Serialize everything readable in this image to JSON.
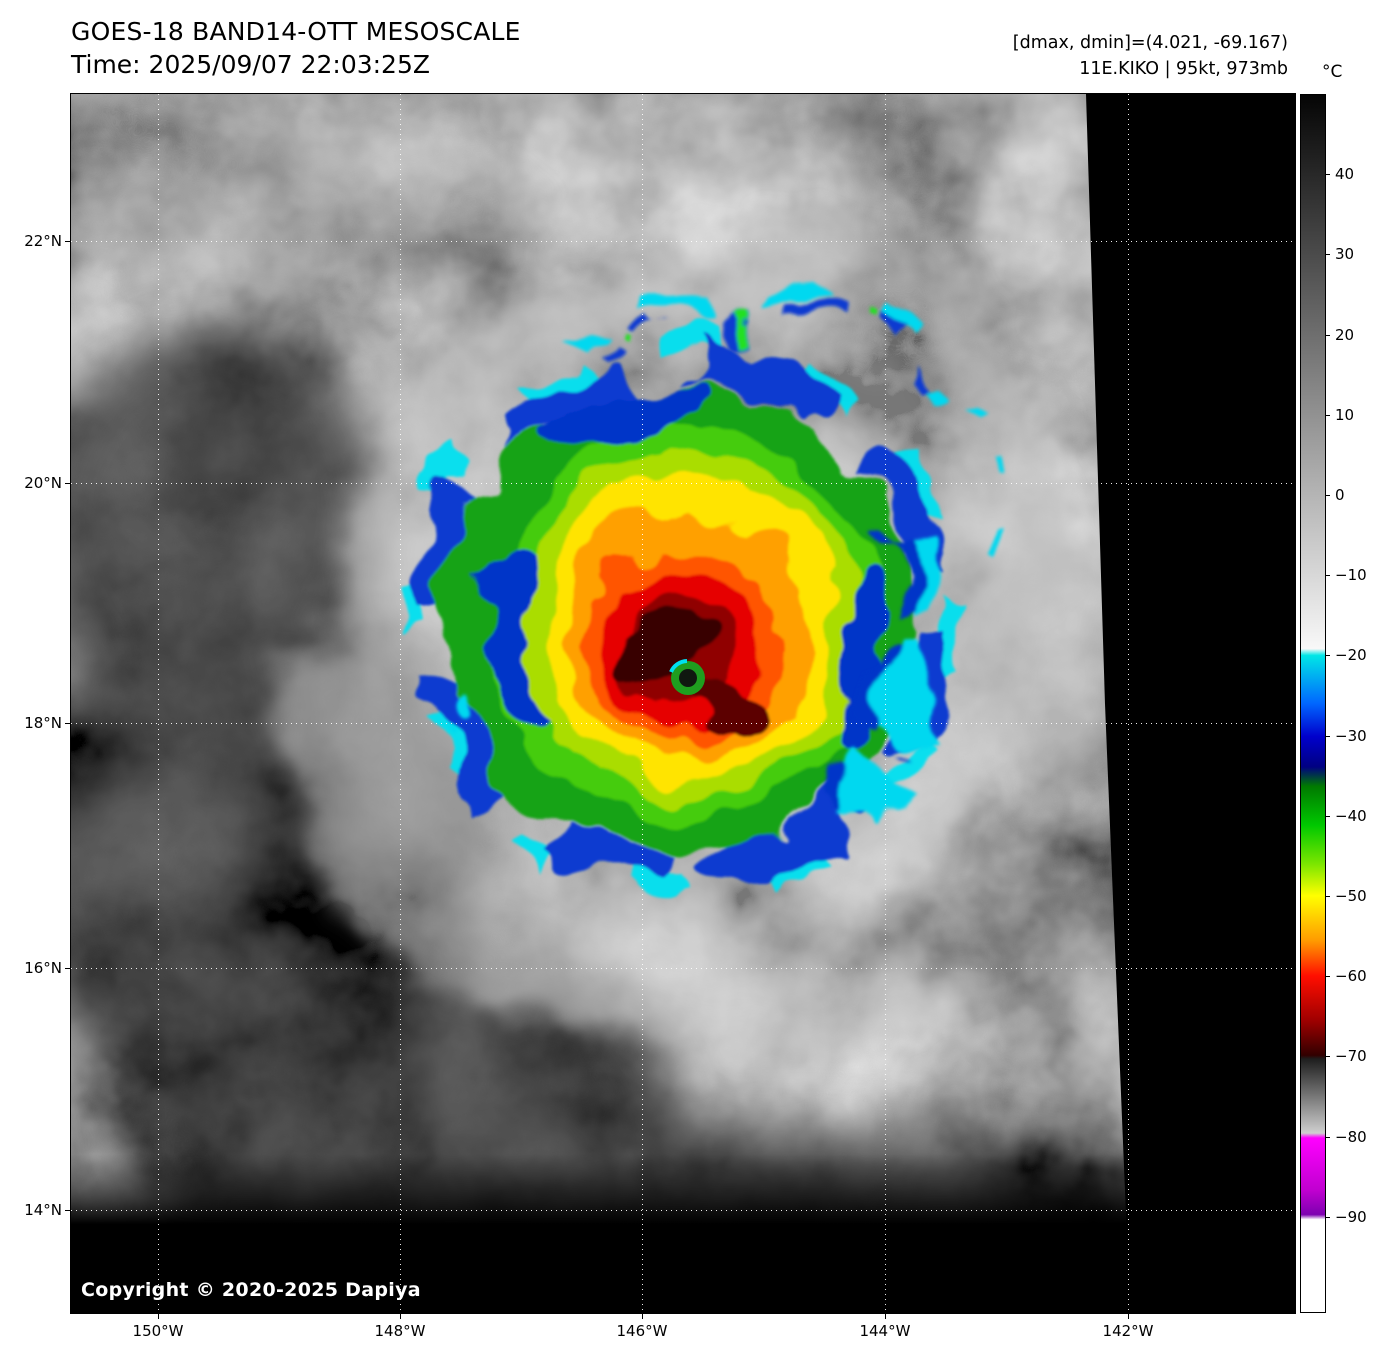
{
  "header": {
    "title": "GOES-18 BAND14-OTT MESOSCALE",
    "time_line": "Time: 2025/09/07 22:03:25Z",
    "dmax_dmin": "[dmax, dmin]=(4.021, -69.167)",
    "storm_info": "11E.KIKO | 95kt, 973mb"
  },
  "map": {
    "copyright": "Copyright © 2020-2025 Dapiya",
    "grid": {
      "lats": [
        {
          "label": "22°N",
          "f": 0.1206
        },
        {
          "label": "20°N",
          "f": 0.3191
        },
        {
          "label": "18°N",
          "f": 0.516
        },
        {
          "label": "16°N",
          "f": 0.717
        },
        {
          "label": "14°N",
          "f": 0.9156
        }
      ],
      "lons": [
        {
          "label": "150°W",
          "f": 0.0711
        },
        {
          "label": "148°W",
          "f": 0.2688
        },
        {
          "label": "146°W",
          "f": 0.4665
        },
        {
          "label": "144°W",
          "f": 0.665
        },
        {
          "label": "142°W",
          "f": 0.8636
        }
      ]
    }
  },
  "colorbar": {
    "unit": "°C",
    "domain_top_degC": 50,
    "domain_bottom_degC": -102,
    "ticks": [
      {
        "label": "40",
        "f": 0.0658
      },
      {
        "label": "30",
        "f": 0.1316
      },
      {
        "label": "20",
        "f": 0.1974
      },
      {
        "label": "10",
        "f": 0.2632
      },
      {
        "label": "0",
        "f": 0.3289
      },
      {
        "label": "−10",
        "f": 0.3947
      },
      {
        "label": "−20",
        "f": 0.4605
      },
      {
        "label": "−30",
        "f": 0.5263
      },
      {
        "label": "−40",
        "f": 0.5921
      },
      {
        "label": "−50",
        "f": 0.6579
      },
      {
        "label": "−60",
        "f": 0.7237
      },
      {
        "label": "−70",
        "f": 0.7895
      },
      {
        "label": "−80",
        "f": 0.8553
      },
      {
        "label": "−90",
        "f": 0.9211
      }
    ],
    "stops": [
      {
        "f": 0.0,
        "color": "#050505"
      },
      {
        "f": 0.455,
        "color": "#f8f8f8"
      },
      {
        "f": 0.4605,
        "color": "#00e6e6"
      },
      {
        "f": 0.5,
        "color": "#0066ff"
      },
      {
        "f": 0.527,
        "color": "#0000cc"
      },
      {
        "f": 0.552,
        "color": "#000082"
      },
      {
        "f": 0.568,
        "color": "#007a00"
      },
      {
        "f": 0.6,
        "color": "#00c800"
      },
      {
        "f": 0.632,
        "color": "#7ce600"
      },
      {
        "f": 0.658,
        "color": "#ffff00"
      },
      {
        "f": 0.695,
        "color": "#ff9a00"
      },
      {
        "f": 0.724,
        "color": "#ff0e00"
      },
      {
        "f": 0.76,
        "color": "#a00000"
      },
      {
        "f": 0.789,
        "color": "#320000"
      },
      {
        "f": 0.792,
        "color": "#1e1e1e"
      },
      {
        "f": 0.853,
        "color": "#cfcfcf"
      },
      {
        "f": 0.857,
        "color": "#ff00ff"
      },
      {
        "f": 0.9,
        "color": "#c000d0"
      },
      {
        "f": 0.92,
        "color": "#7d00b0"
      },
      {
        "f": 0.924,
        "color": "#ffffff"
      },
      {
        "f": 1.0,
        "color": "#ffffff"
      }
    ]
  }
}
